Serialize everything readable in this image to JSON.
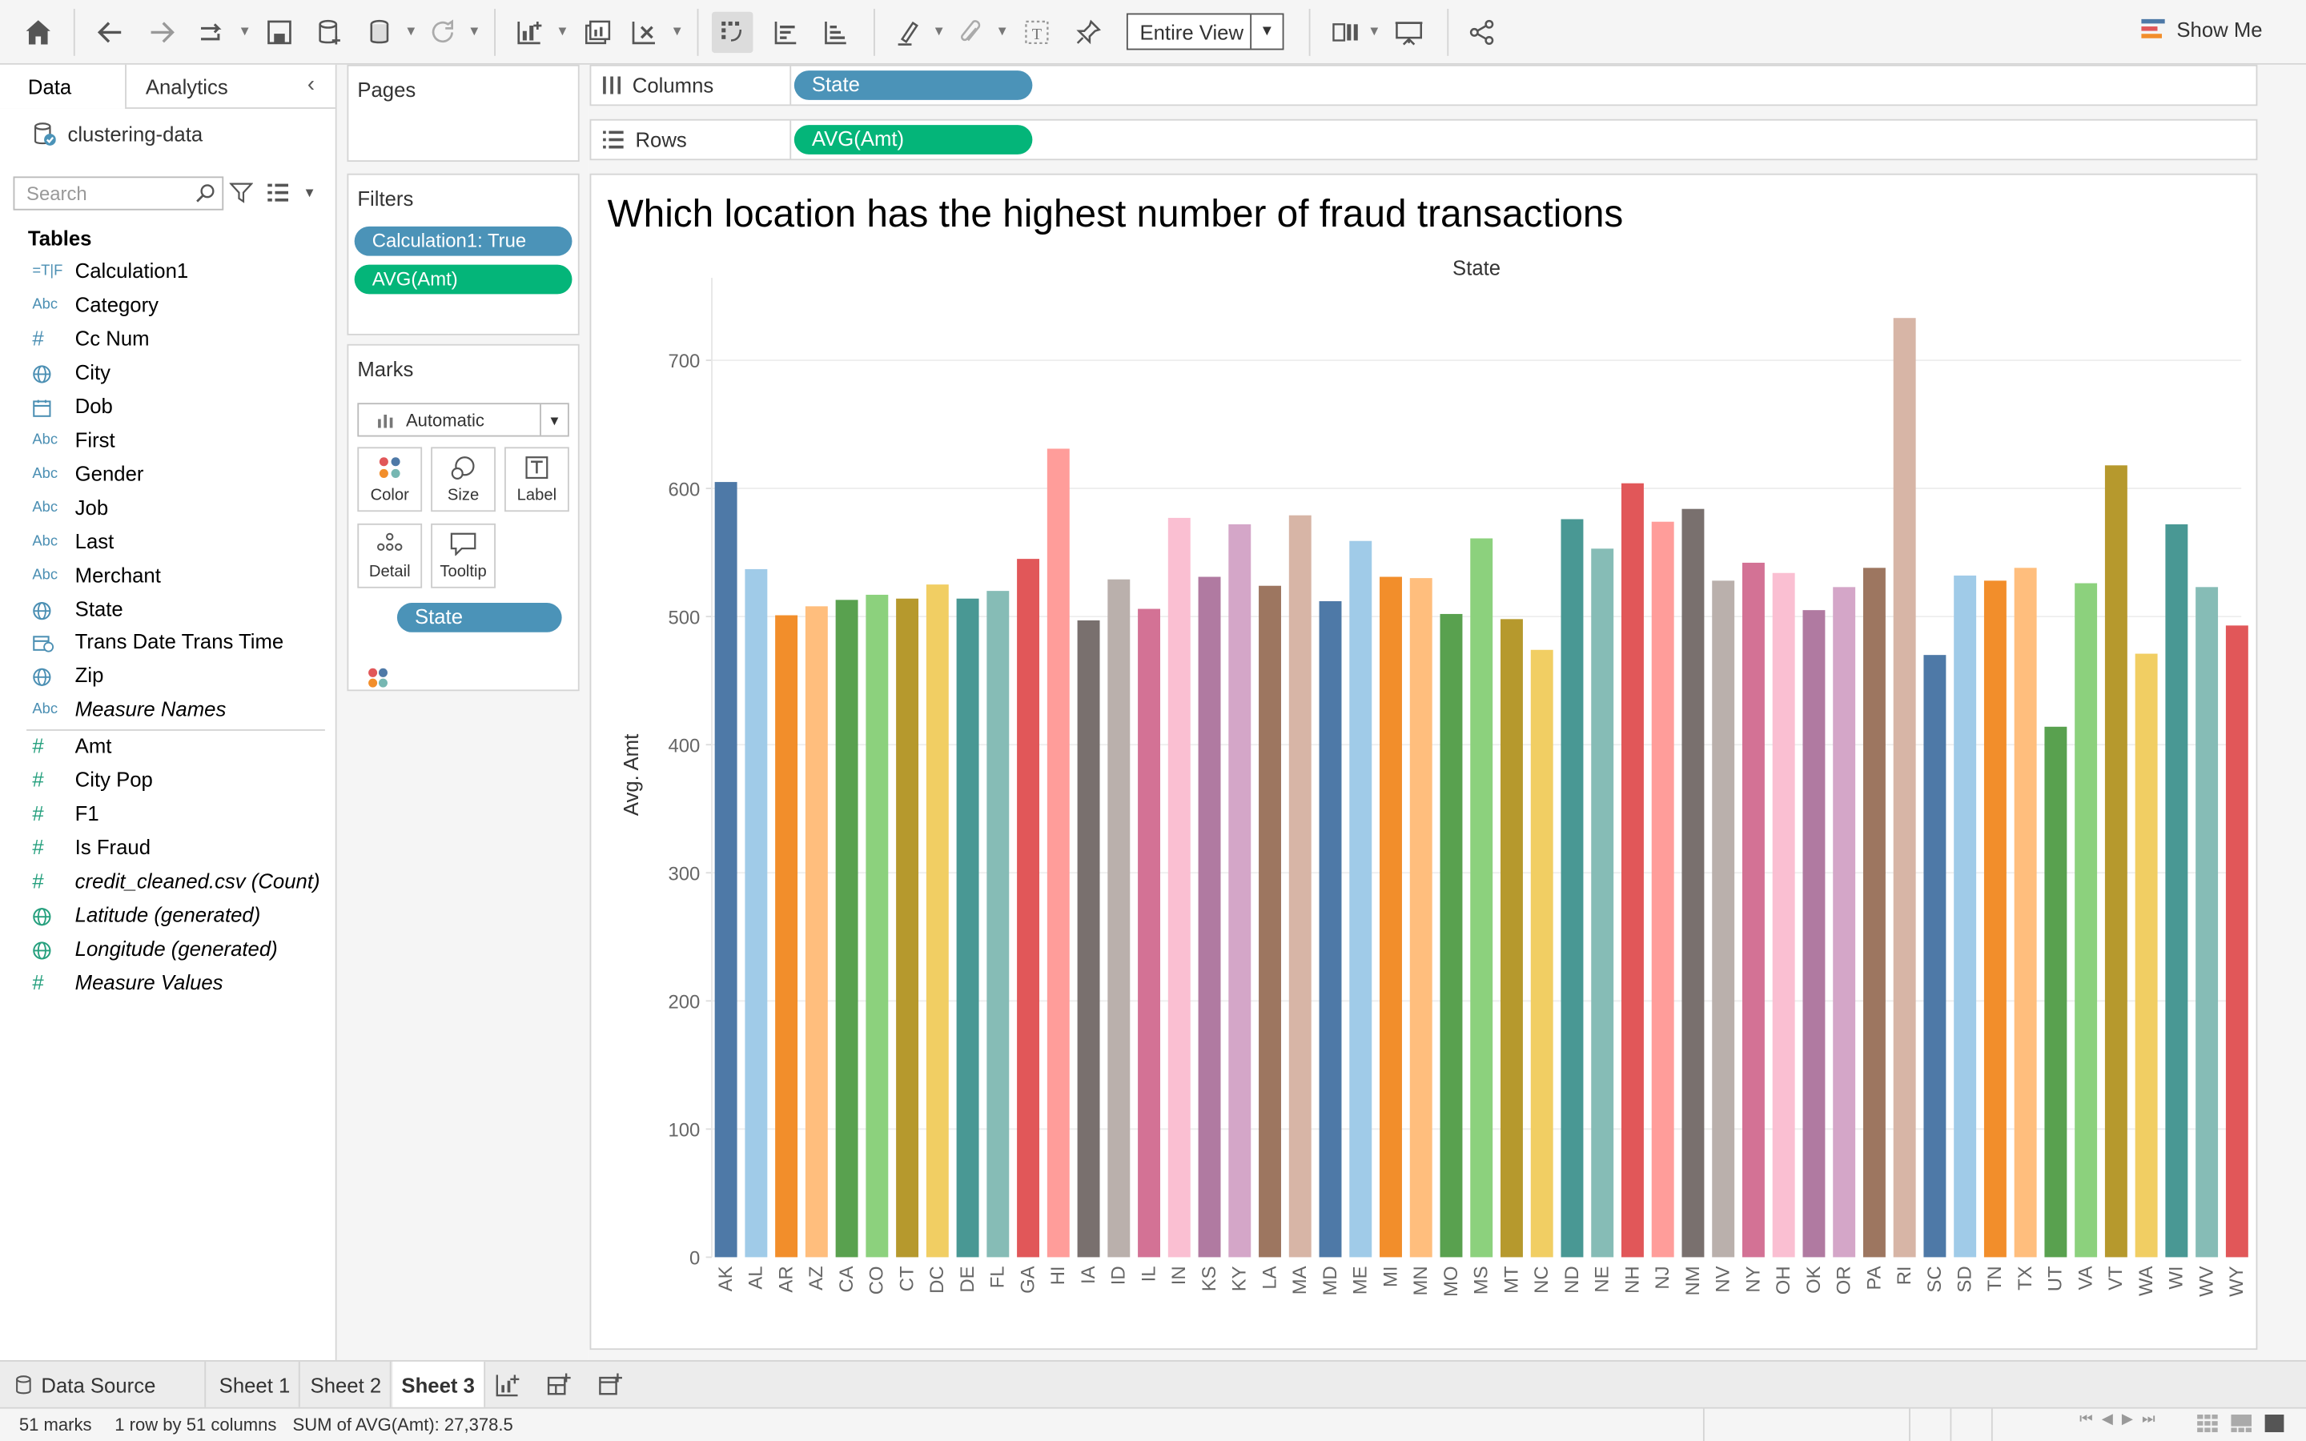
{
  "toolbar": {
    "view_mode": "Entire View",
    "show_me": "Show Me"
  },
  "left_panel": {
    "tabs": [
      "Data",
      "Analytics"
    ],
    "datasource": "clustering-data",
    "search_placeholder": "Search",
    "tables_heading": "Tables",
    "fields": [
      {
        "icon": "=T|F",
        "name": "Calculation1",
        "italic": false,
        "kind": "bool"
      },
      {
        "icon": "Abc",
        "name": "Category",
        "italic": false,
        "kind": "str"
      },
      {
        "icon": "#",
        "name": "Cc Num",
        "italic": false,
        "kind": "num-dim"
      },
      {
        "icon": "globe",
        "name": "City",
        "italic": false,
        "kind": "geo"
      },
      {
        "icon": "calendar",
        "name": "Dob",
        "italic": false,
        "kind": "date"
      },
      {
        "icon": "Abc",
        "name": "First",
        "italic": false,
        "kind": "str"
      },
      {
        "icon": "Abc",
        "name": "Gender",
        "italic": false,
        "kind": "str"
      },
      {
        "icon": "Abc",
        "name": "Job",
        "italic": false,
        "kind": "str"
      },
      {
        "icon": "Abc",
        "name": "Last",
        "italic": false,
        "kind": "str"
      },
      {
        "icon": "Abc",
        "name": "Merchant",
        "italic": false,
        "kind": "str"
      },
      {
        "icon": "globe",
        "name": "State",
        "italic": false,
        "kind": "geo"
      },
      {
        "icon": "datetime",
        "name": "Trans Date Trans Time",
        "italic": false,
        "kind": "date"
      },
      {
        "icon": "globe",
        "name": "Zip",
        "italic": false,
        "kind": "geo"
      },
      {
        "icon": "Abc",
        "name": "Measure Names",
        "italic": true,
        "kind": "str"
      }
    ],
    "measures": [
      {
        "icon": "#",
        "name": "Amt",
        "italic": false,
        "kind": "geo-m"
      },
      {
        "icon": "#",
        "name": "City Pop",
        "italic": false,
        "kind": "num"
      },
      {
        "icon": "#",
        "name": "F1",
        "italic": false,
        "kind": "num"
      },
      {
        "icon": "#",
        "name": "Is Fraud",
        "italic": false,
        "kind": "num"
      },
      {
        "icon": "#",
        "name": "credit_cleaned.csv (Count)",
        "italic": true,
        "kind": "num"
      },
      {
        "icon": "globe",
        "name": "Latitude (generated)",
        "italic": true,
        "kind": "geo-m"
      },
      {
        "icon": "globe",
        "name": "Longitude (generated)",
        "italic": true,
        "kind": "geo-m"
      },
      {
        "icon": "#",
        "name": "Measure Values",
        "italic": true,
        "kind": "num"
      }
    ]
  },
  "cards": {
    "pages": "Pages",
    "filters": "Filters",
    "filter_pills": [
      "Calculation1: True",
      "AVG(Amt)"
    ],
    "marks": "Marks",
    "mark_type": "Automatic",
    "mark_buttons": [
      "Color",
      "Size",
      "Label",
      "Detail",
      "Tooltip"
    ],
    "mark_pill": "State"
  },
  "shelves": {
    "columns_label": "Columns",
    "columns_pill": "State",
    "rows_label": "Rows",
    "rows_pill": "AVG(Amt)"
  },
  "chart_data": {
    "type": "bar",
    "title": "Which location has the highest number of fraud transactions",
    "xlabel": "State",
    "ylabel": "Avg. Amt",
    "ylim": [
      0,
      760
    ],
    "yticks": [
      0,
      100,
      200,
      300,
      400,
      500,
      600,
      700
    ],
    "grid": true,
    "categories": [
      "AK",
      "AL",
      "AR",
      "AZ",
      "CA",
      "CO",
      "CT",
      "DC",
      "DE",
      "FL",
      "GA",
      "HI",
      "IA",
      "ID",
      "IL",
      "IN",
      "KS",
      "KY",
      "LA",
      "MA",
      "MD",
      "ME",
      "MI",
      "MN",
      "MO",
      "MS",
      "MT",
      "NC",
      "ND",
      "NE",
      "NH",
      "NJ",
      "NM",
      "NV",
      "NY",
      "OH",
      "OK",
      "OR",
      "PA",
      "RI",
      "SC",
      "SD",
      "TN",
      "TX",
      "UT",
      "VA",
      "VT",
      "WA",
      "WI",
      "WV",
      "WY"
    ],
    "values": [
      605,
      537,
      501,
      508,
      513,
      517,
      514,
      525,
      514,
      520,
      545,
      631,
      497,
      529,
      506,
      577,
      531,
      572,
      524,
      579,
      512,
      559,
      531,
      530,
      502,
      561,
      498,
      474,
      576,
      553,
      604,
      574,
      584,
      528,
      542,
      534,
      505,
      523,
      538,
      733,
      470,
      532,
      528,
      538,
      414,
      526,
      618,
      471,
      572,
      523,
      493
    ],
    "colors": [
      "#4e79a7",
      "#a0cbe8",
      "#f28e2b",
      "#ffbe7d",
      "#59a14f",
      "#8cd17d",
      "#b6992d",
      "#f1ce63",
      "#499894",
      "#86bcb6",
      "#e15759",
      "#ff9d9a",
      "#79706e",
      "#bab0ac",
      "#d37295",
      "#fabfd2",
      "#b07aa1",
      "#d4a6c8",
      "#9d7660",
      "#d7b5a6",
      "#4e79a7",
      "#a0cbe8",
      "#f28e2b",
      "#ffbe7d",
      "#59a14f",
      "#8cd17d",
      "#b6992d",
      "#f1ce63",
      "#499894",
      "#86bcb6",
      "#e15759",
      "#ff9d9a",
      "#79706e",
      "#bab0ac",
      "#d37295",
      "#fabfd2",
      "#b07aa1",
      "#d4a6c8",
      "#9d7660",
      "#d7b5a6",
      "#4e79a7",
      "#a0cbe8",
      "#f28e2b",
      "#ffbe7d",
      "#59a14f",
      "#8cd17d",
      "#b6992d",
      "#f1ce63",
      "#499894",
      "#86bcb6",
      "#e15759"
    ]
  },
  "sheet_tabs": [
    "Data Source",
    "Sheet 1",
    "Sheet 2",
    "Sheet 3"
  ],
  "active_sheet": "Sheet 3",
  "status": {
    "marks": "51 marks",
    "dims": "1 row by 51 columns",
    "sum": "SUM of AVG(Amt): 27,378.5"
  }
}
